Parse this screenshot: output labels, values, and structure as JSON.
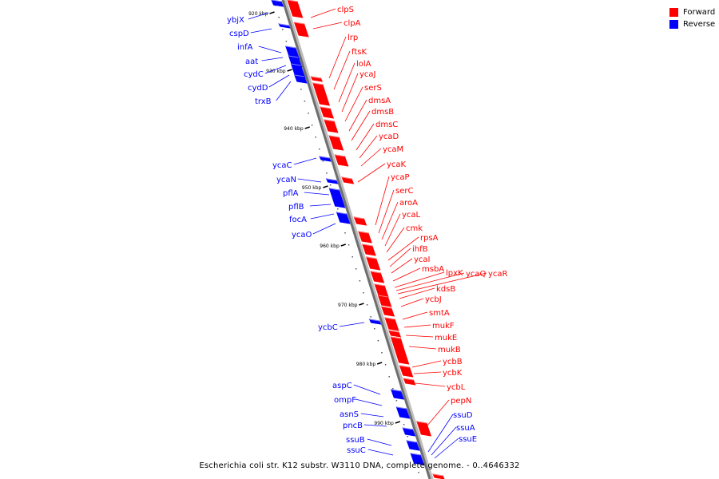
{
  "legend": {
    "forward_label": "Forward",
    "reverse_label": "Reverse",
    "forward_color": "#ff0000",
    "reverse_color": "#0000ff"
  },
  "caption": "Escherichia coli str. K12 substr. W3110 DNA, complete genome. - 0..4646332",
  "track": {
    "kbp_unit": "kbp",
    "kbp_labels": [
      920,
      930,
      940,
      950,
      960,
      970,
      980,
      990
    ]
  },
  "genes": {
    "forward": [
      "clpS",
      "clpA",
      "lrp",
      "ftsK",
      "lolA",
      "ycaJ",
      "serS",
      "dmsA",
      "dmsB",
      "dmsC",
      "ycaD",
      "ycaM",
      "ycaK",
      "ycaP",
      "serC",
      "aroA",
      "ycaL",
      "cmk",
      "rpsA",
      "ihfB",
      "ycaI",
      "msbA",
      "lpxK",
      "ycaQ",
      "ycaR",
      "kdsB",
      "ycbJ",
      "smtA",
      "mukF",
      "mukE",
      "mukB",
      "ycbB",
      "ycbK",
      "ycbL",
      "pepN"
    ],
    "reverse": [
      "ybjX",
      "cspD",
      "infA",
      "aat",
      "cydC",
      "cydD",
      "trxB",
      "ycaC",
      "ycaN",
      "pflA",
      "pflB",
      "focA",
      "ycaO",
      "ycbC",
      "aspC",
      "ompF",
      "asnS",
      "pncB",
      "ssuB",
      "ssuC",
      "ssuD",
      "ssuA",
      "ssuE"
    ]
  }
}
